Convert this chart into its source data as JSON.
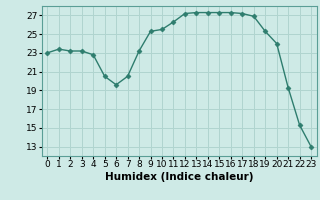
{
  "x": [
    0,
    1,
    2,
    3,
    4,
    5,
    6,
    7,
    8,
    9,
    10,
    11,
    12,
    13,
    14,
    15,
    16,
    17,
    18,
    19,
    20,
    21,
    22,
    23
  ],
  "y": [
    23.0,
    23.4,
    23.2,
    23.2,
    22.8,
    20.5,
    19.6,
    20.5,
    23.2,
    25.3,
    25.5,
    26.3,
    27.2,
    27.3,
    27.3,
    27.3,
    27.3,
    27.2,
    26.9,
    25.3,
    24.0,
    19.3,
    15.3,
    13.0
  ],
  "line_color": "#2e7d6e",
  "marker": "D",
  "marker_size": 2.5,
  "bg_color": "#ceeae6",
  "grid_color": "#b0d4cf",
  "xlabel": "Humidex (Indice chaleur)",
  "ylim": [
    12,
    28
  ],
  "xlim": [
    -0.5,
    23.5
  ],
  "yticks": [
    13,
    15,
    17,
    19,
    21,
    23,
    25,
    27
  ],
  "xticks": [
    0,
    1,
    2,
    3,
    4,
    5,
    6,
    7,
    8,
    9,
    10,
    11,
    12,
    13,
    14,
    15,
    16,
    17,
    18,
    19,
    20,
    21,
    22,
    23
  ],
  "xlabel_fontsize": 7.5,
  "tick_fontsize": 6.5
}
